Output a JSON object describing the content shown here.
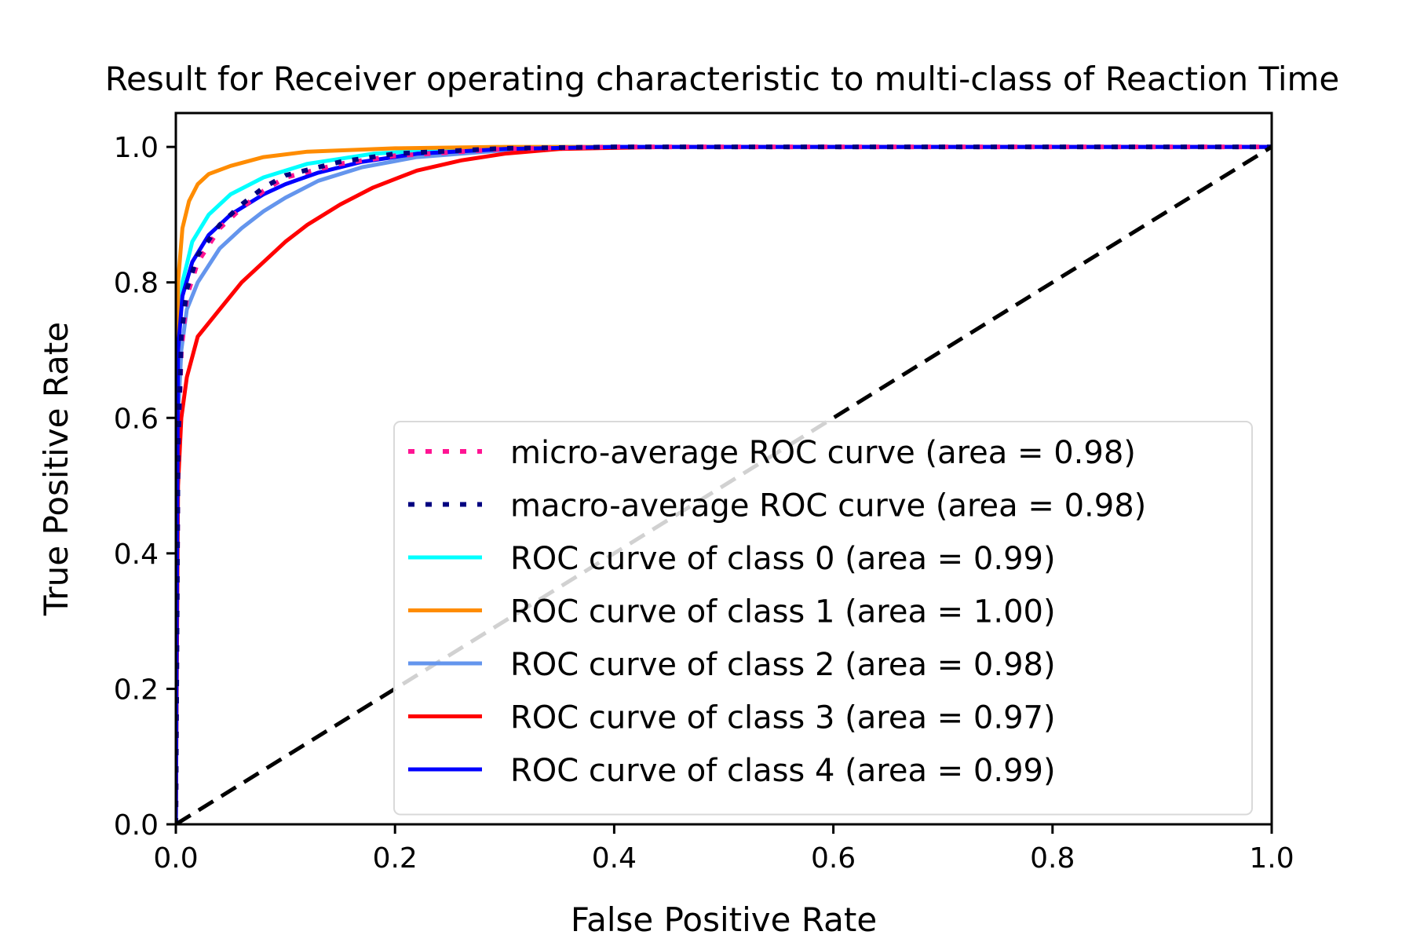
{
  "chart_data": {
    "type": "line",
    "title": "Result for Receiver operating characteristic to multi-class of Reaction Time",
    "xlabel": "False Positive Rate",
    "ylabel": "True Positive Rate",
    "xlim": [
      0.0,
      1.0
    ],
    "ylim": [
      0.0,
      1.05
    ],
    "x_ticks": [
      "0.0",
      "0.2",
      "0.4",
      "0.6",
      "0.8",
      "1.0"
    ],
    "y_ticks": [
      "0.0",
      "0.2",
      "0.4",
      "0.6",
      "0.8",
      "1.0"
    ],
    "grid": false,
    "legend_position": "lower-right",
    "series": [
      {
        "name": "micro-average ROC curve (area = 0.98)",
        "color": "#ff1493",
        "style": "dotted",
        "points": [
          [
            0.0,
            0.0
          ],
          [
            0.002,
            0.55
          ],
          [
            0.005,
            0.7
          ],
          [
            0.01,
            0.78
          ],
          [
            0.02,
            0.83
          ],
          [
            0.04,
            0.88
          ],
          [
            0.06,
            0.91
          ],
          [
            0.08,
            0.935
          ],
          [
            0.1,
            0.955
          ],
          [
            0.15,
            0.975
          ],
          [
            0.2,
            0.987
          ],
          [
            0.3,
            0.997
          ],
          [
            0.4,
            1.0
          ],
          [
            1.0,
            1.0
          ]
        ]
      },
      {
        "name": "macro-average ROC curve (area = 0.98)",
        "color": "#000080",
        "style": "dotted",
        "points": [
          [
            0.0,
            0.0
          ],
          [
            0.002,
            0.55
          ],
          [
            0.005,
            0.72
          ],
          [
            0.01,
            0.79
          ],
          [
            0.02,
            0.84
          ],
          [
            0.04,
            0.885
          ],
          [
            0.06,
            0.915
          ],
          [
            0.08,
            0.94
          ],
          [
            0.1,
            0.958
          ],
          [
            0.15,
            0.978
          ],
          [
            0.2,
            0.99
          ],
          [
            0.3,
            0.998
          ],
          [
            0.4,
            1.0
          ],
          [
            1.0,
            1.0
          ]
        ]
      },
      {
        "name": "ROC curve of class 0 (area = 0.99)",
        "color": "#00ffff",
        "style": "solid",
        "points": [
          [
            0.0,
            0.0
          ],
          [
            0.002,
            0.7
          ],
          [
            0.006,
            0.8
          ],
          [
            0.015,
            0.86
          ],
          [
            0.03,
            0.9
          ],
          [
            0.05,
            0.93
          ],
          [
            0.08,
            0.955
          ],
          [
            0.12,
            0.975
          ],
          [
            0.18,
            0.99
          ],
          [
            0.25,
            0.997
          ],
          [
            0.35,
            1.0
          ],
          [
            1.0,
            1.0
          ]
        ]
      },
      {
        "name": "ROC curve of class 1 (area = 1.00)",
        "color": "#ff8c00",
        "style": "solid",
        "points": [
          [
            0.0,
            0.0
          ],
          [
            0.002,
            0.8
          ],
          [
            0.006,
            0.88
          ],
          [
            0.012,
            0.92
          ],
          [
            0.02,
            0.945
          ],
          [
            0.03,
            0.96
          ],
          [
            0.05,
            0.972
          ],
          [
            0.08,
            0.985
          ],
          [
            0.12,
            0.993
          ],
          [
            0.2,
            0.998
          ],
          [
            0.3,
            1.0
          ],
          [
            1.0,
            1.0
          ]
        ]
      },
      {
        "name": "ROC curve of class 2 (area = 0.98)",
        "color": "#6495ed",
        "style": "solid",
        "points": [
          [
            0.0,
            0.0
          ],
          [
            0.002,
            0.6
          ],
          [
            0.005,
            0.7
          ],
          [
            0.01,
            0.76
          ],
          [
            0.02,
            0.8
          ],
          [
            0.04,
            0.85
          ],
          [
            0.06,
            0.88
          ],
          [
            0.08,
            0.905
          ],
          [
            0.1,
            0.925
          ],
          [
            0.13,
            0.95
          ],
          [
            0.17,
            0.97
          ],
          [
            0.22,
            0.985
          ],
          [
            0.3,
            0.995
          ],
          [
            0.4,
            1.0
          ],
          [
            1.0,
            1.0
          ]
        ]
      },
      {
        "name": "ROC curve of class 3 (area = 0.97)",
        "color": "#ff0000",
        "style": "solid",
        "points": [
          [
            0.0,
            0.0
          ],
          [
            0.002,
            0.5
          ],
          [
            0.005,
            0.6
          ],
          [
            0.01,
            0.66
          ],
          [
            0.02,
            0.72
          ],
          [
            0.04,
            0.76
          ],
          [
            0.06,
            0.8
          ],
          [
            0.08,
            0.83
          ],
          [
            0.1,
            0.86
          ],
          [
            0.12,
            0.885
          ],
          [
            0.15,
            0.915
          ],
          [
            0.18,
            0.94
          ],
          [
            0.22,
            0.965
          ],
          [
            0.26,
            0.98
          ],
          [
            0.3,
            0.99
          ],
          [
            0.35,
            0.997
          ],
          [
            0.45,
            1.0
          ],
          [
            1.0,
            1.0
          ]
        ]
      },
      {
        "name": "ROC curve of class 4 (area = 0.99)",
        "color": "#0000ff",
        "style": "solid",
        "points": [
          [
            0.0,
            0.0
          ],
          [
            0.002,
            0.7
          ],
          [
            0.006,
            0.78
          ],
          [
            0.015,
            0.83
          ],
          [
            0.03,
            0.87
          ],
          [
            0.05,
            0.9
          ],
          [
            0.08,
            0.93
          ],
          [
            0.1,
            0.945
          ],
          [
            0.13,
            0.962
          ],
          [
            0.17,
            0.978
          ],
          [
            0.22,
            0.99
          ],
          [
            0.3,
            0.997
          ],
          [
            0.4,
            1.0
          ],
          [
            1.0,
            1.0
          ]
        ]
      },
      {
        "name": "",
        "color": "#000000",
        "style": "dashed",
        "points": [
          [
            0.0,
            0.0
          ],
          [
            1.0,
            1.0
          ]
        ]
      }
    ]
  }
}
